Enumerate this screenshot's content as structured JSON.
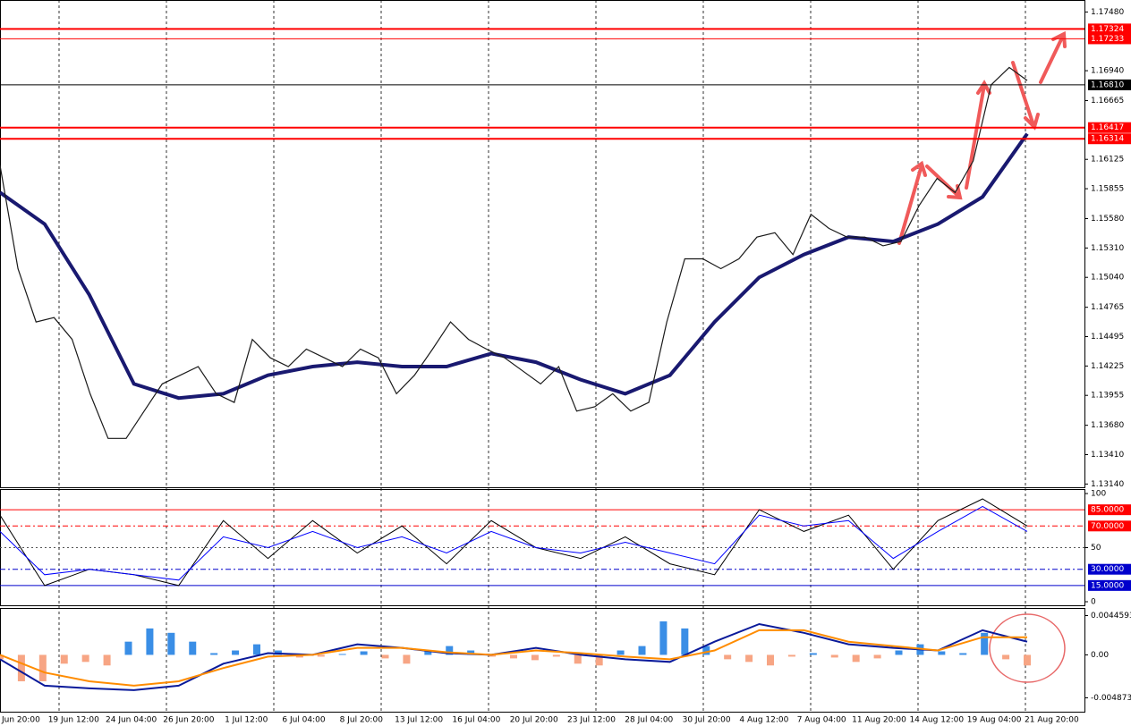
{
  "chart_data": {
    "type": "line",
    "price": {
      "name": "price",
      "color": "#1a1a1a",
      "values": [
        1.1607,
        1.1512,
        1.1463,
        1.1467,
        1.1447,
        1.1397,
        1.1356,
        1.1356,
        1.1381,
        1.1406,
        1.1414,
        1.1422,
        1.1397,
        1.1389,
        1.1447,
        1.143,
        1.1422,
        1.1438,
        1.143,
        1.1422,
        1.1438,
        1.143,
        1.1397,
        1.1414,
        1.1438,
        1.1463,
        1.1447,
        1.1438,
        1.143,
        1.1418,
        1.1406,
        1.1422,
        1.1381,
        1.1385,
        1.1397,
        1.1381,
        1.1389,
        1.1463,
        1.1521,
        1.1521,
        1.1512,
        1.1521,
        1.1541,
        1.1545,
        1.1525,
        1.1562,
        1.1549,
        1.1541,
        1.1541,
        1.1533,
        1.1537,
        1.157,
        1.1595,
        1.1582,
        1.1611,
        1.1681,
        1.1697,
        1.1685
      ]
    },
    "ma": {
      "name": "ma",
      "color": "#191970",
      "values": [
        1.1582,
        1.1553,
        1.1488,
        1.1406,
        1.1393,
        1.1397,
        1.1414,
        1.1422,
        1.1426,
        1.1422,
        1.1422,
        1.1434,
        1.1426,
        1.141,
        1.1397,
        1.1414,
        1.1463,
        1.1504,
        1.1525,
        1.1541,
        1.1537,
        1.1553,
        1.1578,
        1.1636
      ]
    },
    "ylim": [
      1.1311,
      1.1759
    ],
    "yticks": [
      {
        "value": 1.1748,
        "label": "1.17480"
      },
      {
        "value": 1.1694,
        "label": "1.16940"
      },
      {
        "value": 1.16665,
        "label": "1.16665"
      },
      {
        "value": 1.16125,
        "label": "1.16125"
      },
      {
        "value": 1.15855,
        "label": "1.15855"
      },
      {
        "value": 1.1558,
        "label": "1.15580"
      },
      {
        "value": 1.1531,
        "label": "1.15310"
      },
      {
        "value": 1.1504,
        "label": "1.15040"
      },
      {
        "value": 1.14765,
        "label": "1.14765"
      },
      {
        "value": 1.14495,
        "label": "1.14495"
      },
      {
        "value": 1.14225,
        "label": "1.14225"
      },
      {
        "value": 1.13955,
        "label": "1.13955"
      },
      {
        "value": 1.1368,
        "label": "1.13680"
      },
      {
        "value": 1.1341,
        "label": "1.13410"
      },
      {
        "value": 1.1314,
        "label": "1.13140"
      }
    ],
    "levels": [
      {
        "value": 1.17324,
        "label": "1.17324",
        "color": "#ff0000"
      },
      {
        "value": 1.17233,
        "label": "1.17233",
        "color": "#ff0000"
      },
      {
        "value": 1.1681,
        "label": "1.16810",
        "color": "#000000"
      },
      {
        "value": 1.16417,
        "label": "1.16417",
        "color": "#ff0000"
      },
      {
        "value": 1.16314,
        "label": "1.16314",
        "color": "#ff0000"
      }
    ],
    "xlabels": [
      "Jun 20:00",
      "19 Jun 12:00",
      "24 Jun 04:00",
      "26 Jun 20:00",
      "1 Jul 12:00",
      "6 Jul 04:00",
      "8 Jul 20:00",
      "13 Jul 12:00",
      "16 Jul 04:00",
      "20 Jul 20:00",
      "23 Jul 12:00",
      "28 Jul 04:00",
      "30 Jul 20:00",
      "4 Aug 12:00",
      "7 Aug 04:00",
      "11 Aug 20:00",
      "14 Aug 12:00",
      "19 Aug 04:00",
      "21 Aug 20:00"
    ],
    "stoch": {
      "ylim": [
        0,
        100
      ],
      "yticks": [
        100,
        50,
        0
      ],
      "levels": [
        {
          "value": 85,
          "label": "85.0000",
          "color": "#ff0000"
        },
        {
          "value": 70,
          "label": "70.0000",
          "color": "#ff0000"
        },
        {
          "value": 30,
          "label": "30.0000",
          "color": "#0000cc"
        },
        {
          "value": 15,
          "label": "15.0000",
          "color": "#0000cc"
        }
      ],
      "series": [
        {
          "name": "main",
          "color": "#000000",
          "values": [
            80,
            15,
            30,
            25,
            15,
            75,
            40,
            75,
            45,
            70,
            35,
            75,
            50,
            40,
            60,
            35,
            25,
            85,
            65,
            80,
            30,
            75,
            95,
            70
          ]
        },
        {
          "name": "signal",
          "color": "#0000ff",
          "values": [
            65,
            25,
            30,
            25,
            20,
            60,
            50,
            65,
            50,
            60,
            45,
            65,
            50,
            45,
            55,
            45,
            35,
            80,
            70,
            75,
            40,
            65,
            88,
            65
          ]
        }
      ]
    },
    "macd": {
      "ylim": [
        -0.00655,
        0.00522
      ],
      "yticks": [
        0.0044593,
        {
          "value": 0,
          "label": "0.00"
        },
        -0.004873
      ],
      "hist": {
        "pos_color": "#3a8ee6",
        "neg_color": "#f7a584",
        "values": [
          -0.0005,
          -0.003,
          -0.003,
          -0.001,
          -0.0008,
          -0.0012,
          0.0015,
          0.003,
          0.0025,
          0.0015,
          0.0002,
          0.0005,
          0.0012,
          0.0005,
          -0.0003,
          -0.0002,
          0.0001,
          0.0004,
          -0.0004,
          -0.001,
          0.0004,
          0.001,
          0.0005,
          -0.0002,
          -0.0004,
          -0.0006,
          -0.0002,
          -0.001,
          -0.0012,
          0.0005,
          0.001,
          0.0038,
          0.003,
          0.001,
          -0.0005,
          -0.0008,
          -0.0012,
          -0.0002,
          0.0002,
          -0.0003,
          -0.0008,
          -0.0004,
          0.0005,
          0.0012,
          0.0004,
          0.0002,
          0.0025,
          -0.0005,
          -0.0012
        ]
      },
      "series": [
        {
          "name": "macd",
          "color": "#0a1a9a",
          "values": [
            -0.0005,
            -0.0035,
            -0.0038,
            -0.004,
            -0.0035,
            -0.001,
            0.0002,
            0,
            0.0012,
            0.0008,
            0.0002,
            0,
            0.0008,
            0,
            -0.0005,
            -0.0008,
            0.0015,
            0.0035,
            0.0025,
            0.0012,
            0.0008,
            0.0005,
            0.0028,
            0.0015
          ]
        },
        {
          "name": "signal",
          "color": "#ff8c00",
          "values": [
            0,
            -0.002,
            -0.003,
            -0.0035,
            -0.003,
            -0.0015,
            -0.0002,
            0,
            0.0008,
            0.0008,
            0.0003,
            0,
            0.0005,
            0.0002,
            -0.0002,
            -0.0005,
            0.0005,
            0.0028,
            0.0028,
            0.0015,
            0.001,
            0.0005,
            0.002,
            0.002
          ]
        }
      ]
    }
  }
}
